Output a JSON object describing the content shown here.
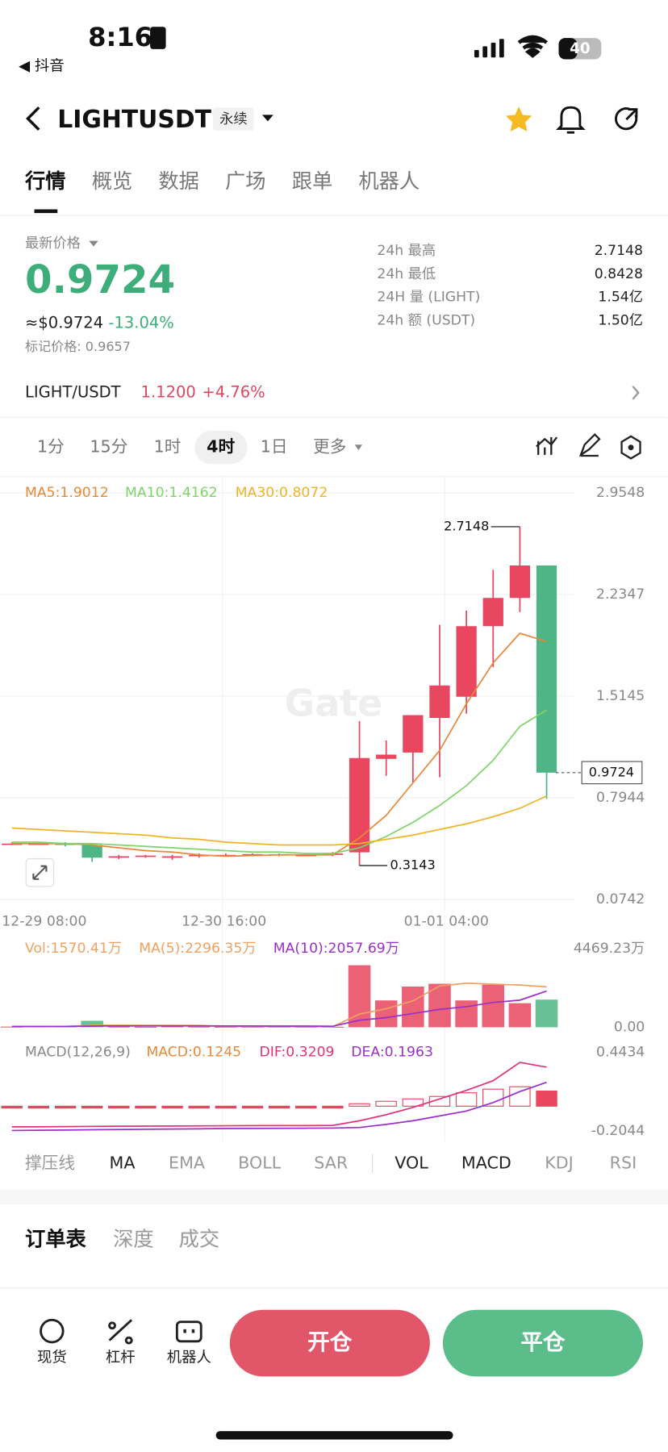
{
  "status_bar": {
    "time": "8:16",
    "back_app": "◀ 抖音",
    "battery": "40"
  },
  "header": {
    "symbol": "LIGHTUSDT",
    "contract": "永续"
  },
  "tabs": [
    "行情",
    "概览",
    "数据",
    "广场",
    "跟单",
    "机器人"
  ],
  "price": {
    "label": "最新价格",
    "last": "0.9724",
    "usd": "≈$0.9724",
    "change": "-13.04%",
    "mark": "标记价格: 0.9657"
  },
  "stats": [
    {
      "label": "24h  最高",
      "value": "2.7148"
    },
    {
      "label": "24h  最低",
      "value": "0.8428"
    },
    {
      "label": "24H  量 (LIGHT)",
      "value": "1.54亿"
    },
    {
      "label": "24h  额 (USDT)",
      "value": "1.50亿"
    }
  ],
  "spot": {
    "pair": "LIGHT/USDT",
    "price": "1.1200",
    "change": "+4.76%"
  },
  "intervals": [
    "1分",
    "15分",
    "1时",
    "4时",
    "1日",
    "更多"
  ],
  "watermark": "Gate",
  "kline": {
    "type": "candlestick",
    "legend": [
      "MA5:1.9012",
      "MA10:1.4162",
      "MA30:0.8072"
    ],
    "ylim": [
      0.0742,
      2.9548
    ],
    "yticks": [
      2.9548,
      2.2347,
      1.5145,
      0.7944,
      0.0742
    ],
    "time_labels": [
      "12-29 08:00",
      "12-30 16:00",
      "01-01 04:00"
    ],
    "up_color": "#e8475f",
    "down_color": "#4fb585",
    "open": [
      0.47,
      0.47,
      0.47,
      0.46,
      0.37,
      0.38,
      0.37,
      0.38,
      0.39,
      0.39,
      0.395,
      0.39,
      0.39,
      0.408,
      1.07,
      1.115,
      1.36,
      1.51,
      2.01,
      2.21,
      2.44
    ],
    "high": [
      0.48,
      0.48,
      0.48,
      0.47,
      0.39,
      0.39,
      0.39,
      0.4,
      0.4,
      0.4,
      0.4,
      0.4,
      0.41,
      1.338,
      1.2,
      1.38,
      2.02,
      2.12,
      2.41,
      2.7148,
      2.44
    ],
    "low": [
      0.46,
      0.46,
      0.45,
      0.34,
      0.36,
      0.37,
      0.355,
      0.37,
      0.38,
      0.38,
      0.38,
      0.38,
      0.38,
      0.3143,
      0.95,
      0.9,
      0.94,
      1.39,
      1.72,
      2.11,
      0.788
    ],
    "close": [
      0.47,
      0.47,
      0.46,
      0.37,
      0.38,
      0.385,
      0.38,
      0.39,
      0.39,
      0.395,
      0.39,
      0.39,
      0.4,
      1.076,
      1.1,
      1.38,
      1.59,
      2.01,
      2.21,
      2.44,
      0.9724
    ],
    "ma5": [
      0.47,
      0.47,
      0.47,
      0.46,
      0.44,
      0.42,
      0.41,
      0.39,
      0.38,
      0.385,
      0.39,
      0.39,
      0.39,
      0.51,
      0.67,
      0.9,
      1.13,
      1.46,
      1.75,
      1.96,
      1.9012
    ],
    "ma10": [
      0.48,
      0.48,
      0.47,
      0.47,
      0.46,
      0.45,
      0.44,
      0.43,
      0.42,
      0.41,
      0.41,
      0.4,
      0.4,
      0.44,
      0.52,
      0.62,
      0.74,
      0.88,
      1.06,
      1.3,
      1.4162
    ],
    "ma30": [
      0.58,
      0.57,
      0.56,
      0.55,
      0.54,
      0.53,
      0.51,
      0.5,
      0.48,
      0.47,
      0.46,
      0.46,
      0.46,
      0.47,
      0.5,
      0.53,
      0.57,
      0.61,
      0.66,
      0.72,
      0.8072
    ],
    "ma_colors": [
      "#e8883a",
      "#7ed46a",
      "#f0b429"
    ]
  },
  "volume": {
    "legend": [
      "Vol:1570.41万",
      "MA(5):2296.35万",
      "MA(10):2057.69万"
    ],
    "ylim": [
      0,
      4469.23
    ],
    "yticks": [
      {
        "value": 4469.23,
        "label": "4469.23万"
      },
      {
        "value": 0,
        "label": "0.00"
      }
    ],
    "values": [
      40,
      60,
      50,
      368,
      40,
      30,
      50,
      40,
      30,
      30,
      30,
      30,
      30,
      3522,
      1525,
      2313,
      2471,
      1525,
      2418,
      1367,
      1570.41
    ],
    "ma5": [
      50,
      50,
      50,
      110,
      118,
      108,
      108,
      106,
      38,
      36,
      32,
      32,
      30,
      750,
      1050,
      1500,
      2350,
      2500,
      2450,
      2400,
      2296.35
    ],
    "ma10": [
      45,
      45,
      45,
      70,
      75,
      80,
      80,
      80,
      75,
      72,
      70,
      70,
      60,
      400,
      550,
      780,
      1020,
      1170,
      1410,
      1540,
      2057.69
    ],
    "colors": [
      "#e8475f",
      "#f0a060",
      "#9b2fc9",
      "#4fb585"
    ]
  },
  "macd": {
    "legend": [
      "MACD(12,26,9)",
      "MACD:0.1245",
      "DIF:0.3209",
      "DEA:0.1963"
    ],
    "ylim": [
      -0.2044,
      0.4434
    ],
    "yticks": [
      0.4434,
      -0.2044
    ],
    "hist": [
      -0.01,
      -0.01,
      -0.01,
      -0.01,
      -0.01,
      -0.01,
      -0.01,
      -0.01,
      -0.01,
      -0.01,
      -0.01,
      -0.01,
      -0.01,
      0.02,
      0.04,
      0.06,
      0.08,
      0.11,
      0.14,
      0.16,
      0.1245
    ],
    "dif": [
      -0.17,
      -0.17,
      -0.168,
      -0.166,
      -0.165,
      -0.164,
      -0.163,
      -0.162,
      -0.161,
      -0.16,
      -0.16,
      -0.16,
      -0.158,
      -0.12,
      -0.07,
      -0.01,
      0.06,
      0.13,
      0.21,
      0.36,
      0.3209
    ],
    "dea": [
      -0.2,
      -0.198,
      -0.196,
      -0.194,
      -0.192,
      -0.19,
      -0.188,
      -0.186,
      -0.184,
      -0.183,
      -0.182,
      -0.181,
      -0.18,
      -0.175,
      -0.15,
      -0.12,
      -0.08,
      -0.04,
      0.03,
      0.12,
      0.1963
    ],
    "colors": [
      "#e8475f",
      "#e0337a",
      "#9b2fc9"
    ]
  },
  "indicators": [
    "撑压线",
    "MA",
    "EMA",
    "BOLL",
    "SAR",
    "VOL",
    "MACD",
    "KDJ",
    "RSI"
  ],
  "book_tabs": [
    "订单表",
    "深度",
    "成交"
  ],
  "nav": [
    "现货",
    "杠杆",
    "机器人"
  ],
  "buttons": {
    "open": "开仓",
    "close": "平仓"
  }
}
